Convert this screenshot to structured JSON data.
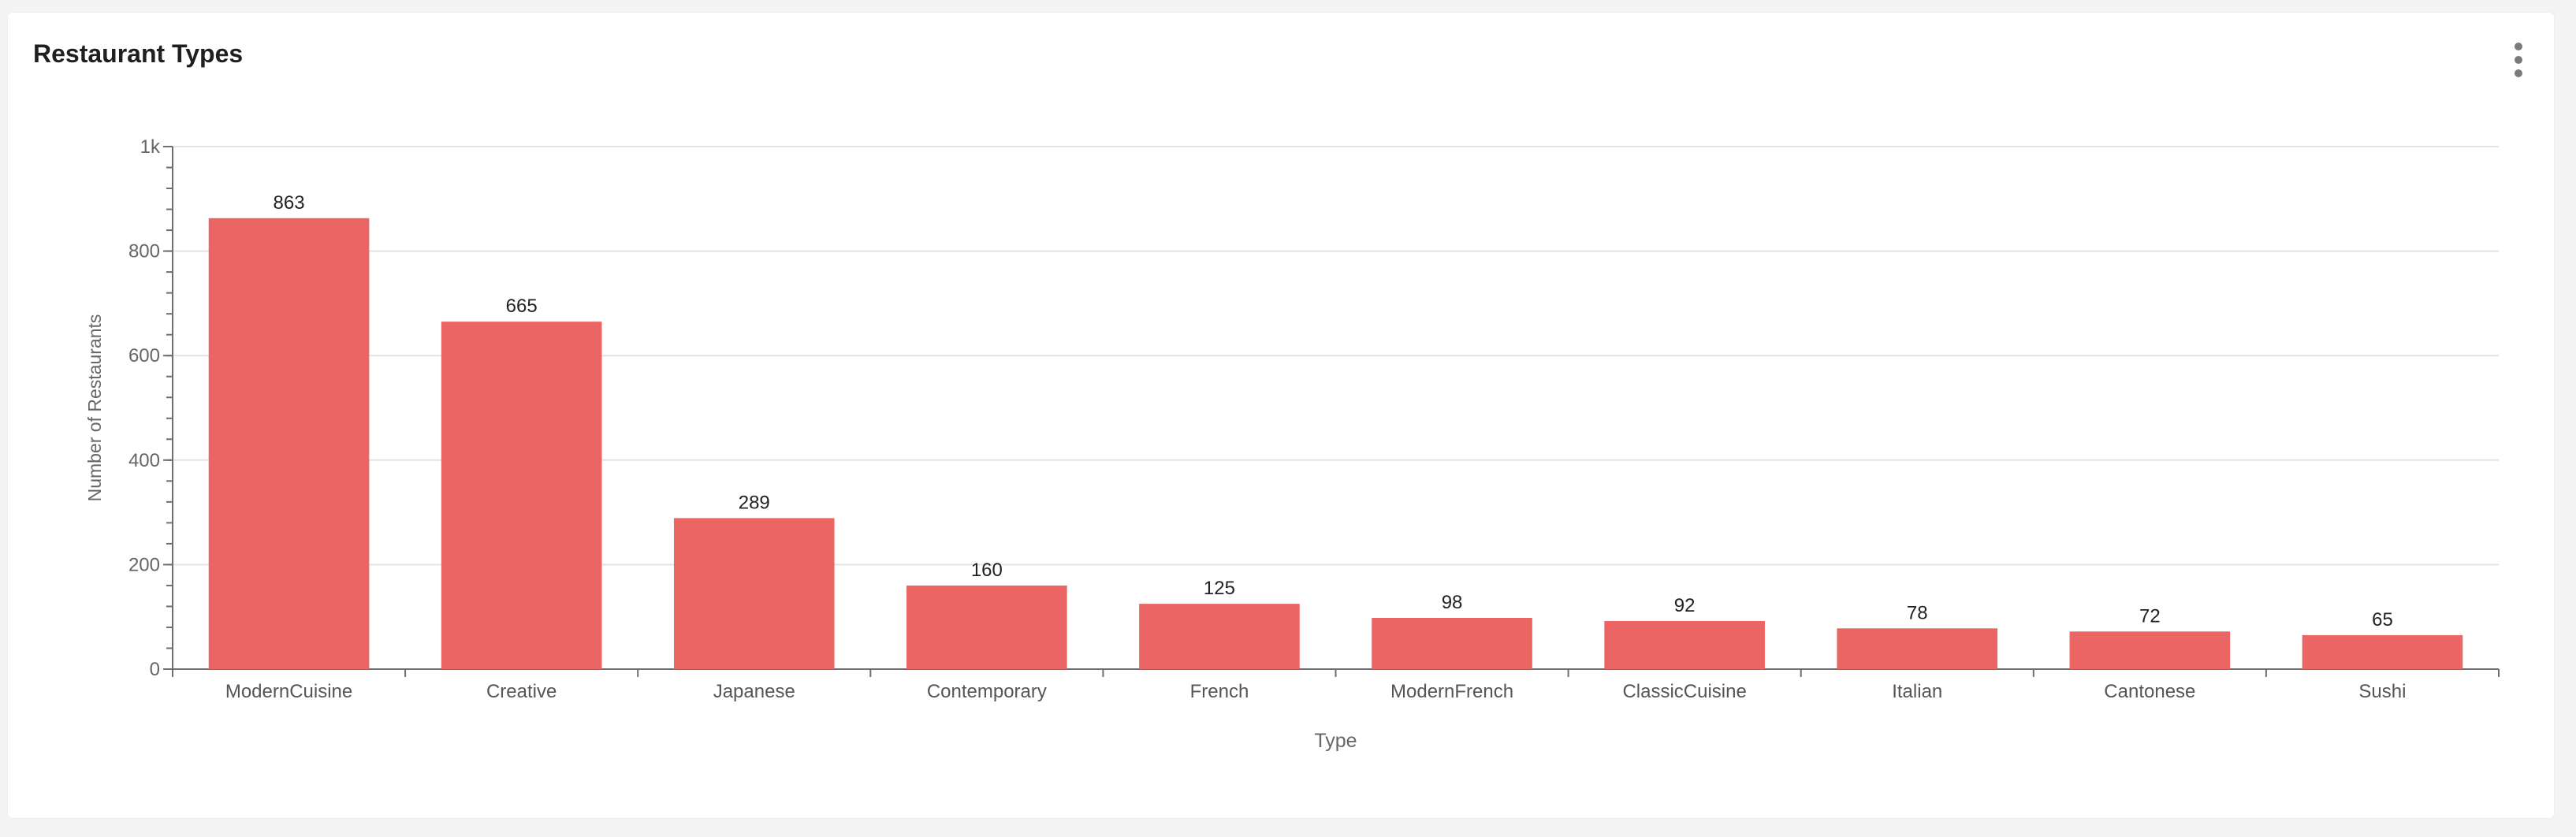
{
  "card": {
    "title": "Restaurant Types",
    "menu_icon": "more-vertical-icon"
  },
  "chart_data": {
    "type": "bar",
    "title": "Restaurant Types",
    "xlabel": "Type",
    "ylabel": "Number of Restaurants",
    "categories": [
      "ModernCuisine",
      "Creative",
      "Japanese",
      "Contemporary",
      "French",
      "ModernFrench",
      "ClassicCuisine",
      "Italian",
      "Cantonese",
      "Sushi"
    ],
    "values": [
      863,
      665,
      289,
      160,
      125,
      98,
      92,
      78,
      72,
      65
    ],
    "ylim": [
      0,
      1000
    ],
    "yticks": [
      0,
      200,
      400,
      600,
      800,
      1000
    ],
    "ytick_labels": [
      "0",
      "200",
      "400",
      "600",
      "800",
      "1k"
    ],
    "grid": true,
    "legend": "none",
    "bar_color": "#ec6565"
  }
}
